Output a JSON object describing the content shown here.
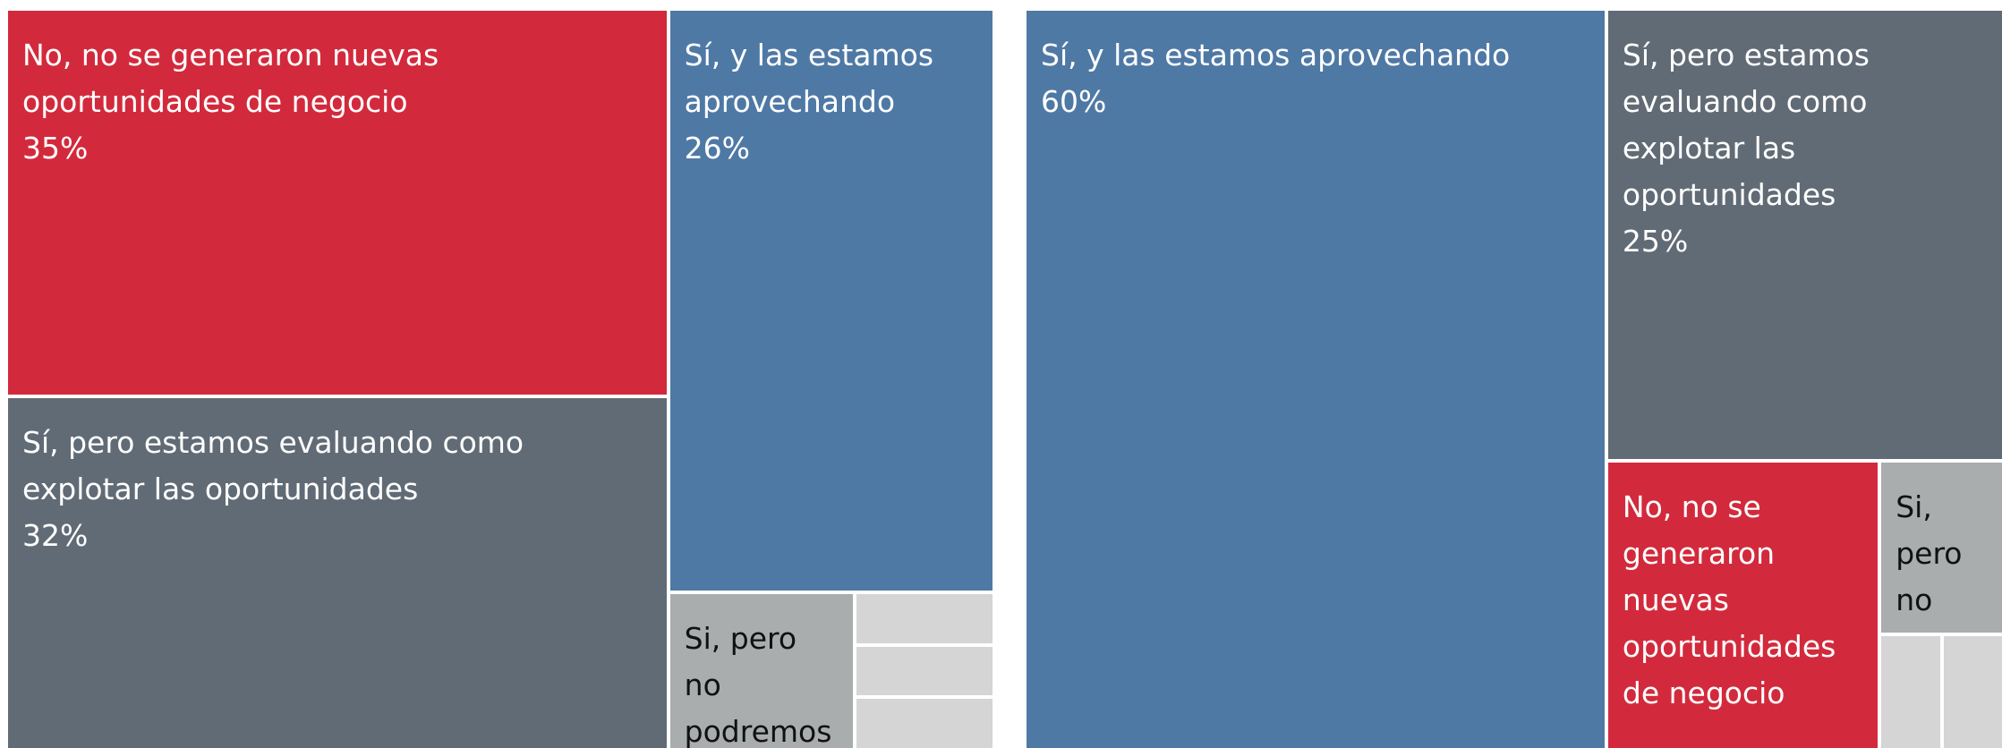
{
  "chart_data": [
    {
      "type": "treemap",
      "categories": [
        "No, no se generaron nuevas oportunidades de negocio",
        "Sí, pero estamos evaluando como explotar las oportunidades",
        "Sí, y las estamos aprovechando",
        "Si, pero no podremos",
        null,
        null,
        null
      ],
      "values": [
        35,
        32,
        26,
        4,
        1,
        1,
        1
      ],
      "value_labels": [
        "35%",
        "32%",
        "26%",
        null,
        null,
        null,
        null
      ],
      "colors": [
        "#d22a3c",
        "#616b75",
        "#4f79a5",
        "#a9adae",
        "#d5d5d5",
        "#d5d5d5",
        "#d5d5d5"
      ]
    },
    {
      "type": "treemap",
      "categories": [
        "Sí, y las estamos aprovechando",
        "Sí, pero estamos evaluando como explotar las oportunidades",
        "No, no se generaron nuevas oportunidades de negocio",
        "Si, pero no podremos",
        null,
        null
      ],
      "values": [
        60,
        25,
        11,
        3,
        1,
        1
      ],
      "value_labels": [
        "60%",
        "25%",
        null,
        null,
        null,
        null
      ],
      "colors": [
        "#4f79a5",
        "#616b75",
        "#d22a3c",
        "#a9adae",
        "#d5d5d5",
        "#d5d5d5"
      ]
    }
  ]
}
